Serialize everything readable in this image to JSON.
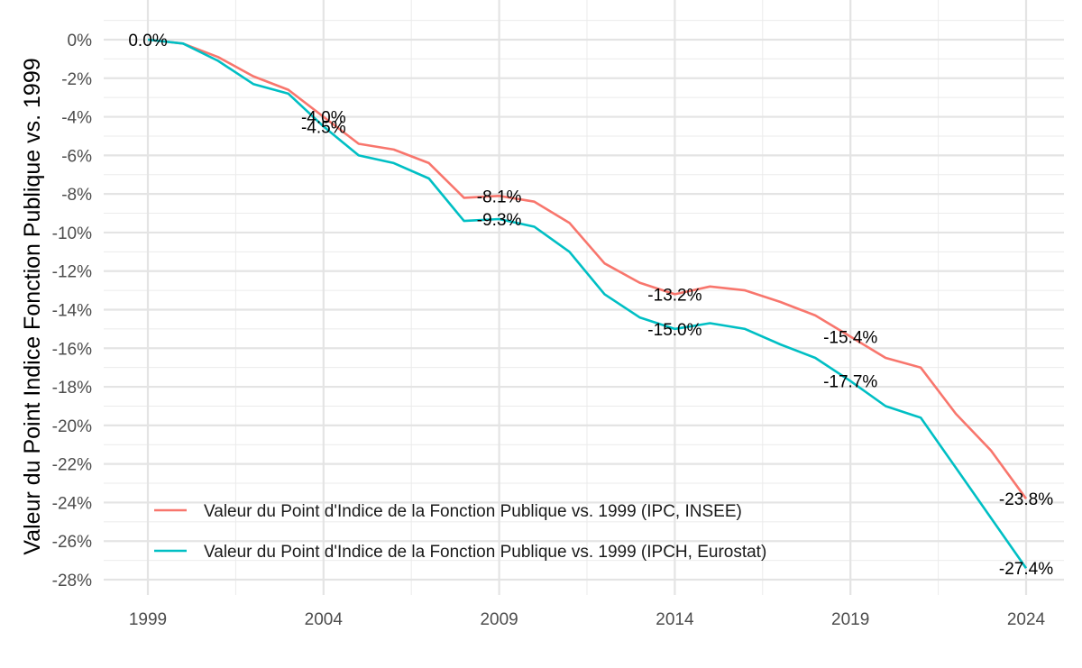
{
  "chart_data": {
    "type": "line",
    "title": "",
    "xlabel": "",
    "ylabel": "Valeur du Point Indice Fonction Publique vs. 1999",
    "xlim": [
      1997.5,
      2025.2
    ],
    "ylim": [
      -28.4,
      1.0
    ],
    "x_ticks": [
      1999,
      2004,
      2009,
      2014,
      2019,
      2024
    ],
    "y_ticks": [
      0,
      -2,
      -4,
      -6,
      -8,
      -10,
      -12,
      -14,
      -16,
      -18,
      -20,
      -22,
      -24,
      -26,
      -28
    ],
    "y_tick_suffix": "%",
    "grid": true,
    "legend_position": "bottom-left",
    "series": [
      {
        "name": "Valeur du Point d'Indice de la Fonction Publique vs. 1999 (IPC, INSEE)",
        "color": "#F8766D",
        "x": [
          1999,
          2000,
          2001,
          2002,
          2003,
          2004,
          2005,
          2006,
          2007,
          2008,
          2009,
          2010,
          2011,
          2012,
          2013,
          2014,
          2015,
          2016,
          2017,
          2018,
          2019,
          2020,
          2021,
          2022,
          2023,
          2024
        ],
        "values": [
          0.0,
          -0.2,
          -0.9,
          -1.9,
          -2.6,
          -4.0,
          -5.4,
          -5.7,
          -6.4,
          -8.2,
          -8.1,
          -8.4,
          -9.5,
          -11.6,
          -12.6,
          -13.2,
          -12.8,
          -13.0,
          -13.6,
          -14.3,
          -15.4,
          -16.5,
          -17.0,
          -19.4,
          -21.3,
          -23.8
        ]
      },
      {
        "name": "Valeur du Point d'Indice de la Fonction Publique vs. 1999 (IPCH, Eurostat)",
        "color": "#00BFC4",
        "x": [
          1999,
          2000,
          2001,
          2002,
          2003,
          2004,
          2005,
          2006,
          2007,
          2008,
          2009,
          2010,
          2011,
          2012,
          2013,
          2014,
          2015,
          2016,
          2017,
          2018,
          2019,
          2020,
          2021,
          2022,
          2023,
          2024
        ],
        "values": [
          0.0,
          -0.2,
          -1.1,
          -2.3,
          -2.8,
          -4.5,
          -6.0,
          -6.4,
          -7.2,
          -9.4,
          -9.3,
          -9.7,
          -11.0,
          -13.2,
          -14.4,
          -15.0,
          -14.7,
          -15.0,
          -15.8,
          -16.5,
          -17.7,
          -19.0,
          -19.6,
          -22.2,
          -24.8,
          -27.4
        ]
      }
    ],
    "data_labels": [
      {
        "x": 1999,
        "y": 0.0,
        "text": "0.0%"
      },
      {
        "x": 2004,
        "y": -4.0,
        "text": "-4.0%"
      },
      {
        "x": 2004,
        "y": -4.5,
        "text": "-4.5%"
      },
      {
        "x": 2009,
        "y": -8.1,
        "text": "-8.1%"
      },
      {
        "x": 2009,
        "y": -9.3,
        "text": "-9.3%"
      },
      {
        "x": 2014,
        "y": -13.2,
        "text": "-13.2%"
      },
      {
        "x": 2014,
        "y": -15.0,
        "text": "-15.0%"
      },
      {
        "x": 2019,
        "y": -15.4,
        "text": "-15.4%"
      },
      {
        "x": 2019,
        "y": -17.7,
        "text": "-17.7%"
      },
      {
        "x": 2024,
        "y": -23.8,
        "text": "-23.8%"
      },
      {
        "x": 2024,
        "y": -27.4,
        "text": "-27.4%"
      }
    ]
  }
}
